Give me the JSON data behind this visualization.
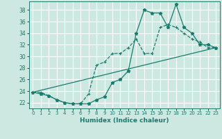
{
  "xlabel": "Humidex (Indice chaleur)",
  "bg_color": "#cce8e0",
  "grid_color": "#ffffff",
  "line_color": "#1a7a6e",
  "xlim": [
    -0.5,
    23.5
  ],
  "ylim": [
    21.0,
    39.5
  ],
  "yticks": [
    22,
    24,
    26,
    28,
    30,
    32,
    34,
    36,
    38
  ],
  "xticks": [
    0,
    1,
    2,
    3,
    4,
    5,
    6,
    7,
    8,
    9,
    10,
    11,
    12,
    13,
    14,
    15,
    16,
    17,
    18,
    19,
    20,
    21,
    22,
    23
  ],
  "line1_x": [
    0,
    1,
    2,
    3,
    4,
    5,
    6,
    7,
    8,
    9,
    10,
    11,
    12,
    13,
    14,
    15,
    16,
    17,
    18,
    19,
    20,
    21,
    22,
    23
  ],
  "line1_y": [
    23.8,
    23.8,
    23.2,
    22.5,
    22.0,
    21.8,
    21.8,
    23.5,
    28.5,
    29.0,
    30.5,
    30.5,
    31.5,
    33.0,
    30.5,
    30.5,
    35.0,
    35.5,
    35.0,
    34.0,
    33.0,
    32.5,
    31.5,
    31.5
  ],
  "line2_x": [
    0,
    1,
    2,
    3,
    4,
    5,
    6,
    7,
    8,
    9,
    10,
    11,
    12,
    13,
    14,
    15,
    16,
    17,
    18,
    19,
    20,
    21,
    22,
    23
  ],
  "line2_y": [
    23.8,
    23.5,
    23.2,
    22.5,
    22.0,
    21.8,
    21.8,
    21.8,
    22.5,
    23.0,
    25.5,
    26.0,
    27.5,
    34.0,
    38.0,
    37.5,
    37.5,
    35.0,
    39.0,
    35.0,
    34.0,
    32.0,
    32.0,
    31.5
  ],
  "line3_x": [
    0,
    23
  ],
  "line3_y": [
    23.8,
    31.5
  ]
}
